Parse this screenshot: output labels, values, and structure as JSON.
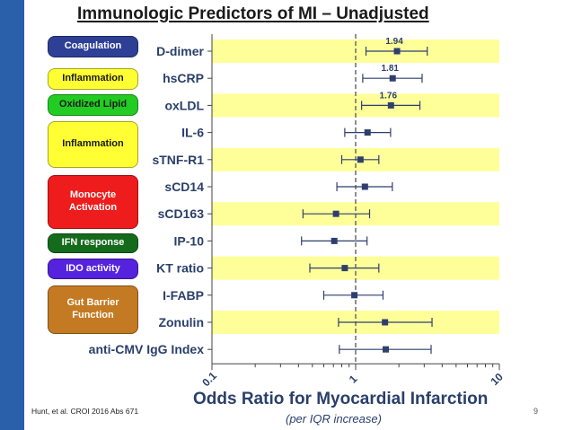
{
  "title": "Immunologic Predictors of MI – Unadjusted",
  "categories_panel": [
    {
      "label": "Coagulation",
      "bg": "#2e3f96",
      "fg": "#ffffff"
    },
    {
      "label": "Inflammation",
      "bg": "#ffff33",
      "fg": "#1a1a1a"
    },
    {
      "label": "Oxidized Lipid",
      "bg": "#22cc22",
      "fg": "#1a1a1a"
    },
    {
      "label": "Inflammation",
      "bg": "#ffff33",
      "fg": "#1a1a1a"
    },
    {
      "label": "Monocyte\nActivation",
      "bg": "#ee1c1c",
      "fg": "#ffffff"
    },
    {
      "label": "IFN response",
      "bg": "#146b1c",
      "fg": "#ffffff"
    },
    {
      "label": "IDO activity",
      "bg": "#5522dd",
      "fg": "#ffffff"
    },
    {
      "label": "Gut Barrier\nFunction",
      "bg": "#c47a22",
      "fg": "#ffffff"
    }
  ],
  "chart_data": {
    "type": "forest",
    "x_scale": "log",
    "xlim": [
      0.1,
      10
    ],
    "x_ticks": [
      "0.1",
      "1",
      "10"
    ],
    "reference_line": 1,
    "xlabel": "Odds Ratio for Myocardial Infarction",
    "xlabel_sub": "(per IQR increase)",
    "band_color": "#ffff99",
    "marker_color": "#2e3f6e",
    "rows": [
      {
        "label": "D-dimer",
        "or": 1.94,
        "lo": 1.18,
        "hi": 3.15,
        "value_label": "1.94"
      },
      {
        "label": "hsCRP",
        "or": 1.81,
        "lo": 1.12,
        "hi": 2.9,
        "value_label": "1.81"
      },
      {
        "label": "oxLDL",
        "or": 1.76,
        "lo": 1.1,
        "hi": 2.8,
        "value_label": "1.76"
      },
      {
        "label": "IL-6",
        "or": 1.21,
        "lo": 0.84,
        "hi": 1.75,
        "value_label": ""
      },
      {
        "label": "sTNF-R1",
        "or": 1.08,
        "lo": 0.8,
        "hi": 1.45,
        "value_label": ""
      },
      {
        "label": "sCD14",
        "or": 1.16,
        "lo": 0.74,
        "hi": 1.8,
        "value_label": ""
      },
      {
        "label": "sCD163",
        "or": 0.73,
        "lo": 0.43,
        "hi": 1.25,
        "value_label": ""
      },
      {
        "label": "IP-10",
        "or": 0.71,
        "lo": 0.42,
        "hi": 1.2,
        "value_label": ""
      },
      {
        "label": "KT ratio",
        "or": 0.84,
        "lo": 0.48,
        "hi": 1.45,
        "value_label": ""
      },
      {
        "label": "I-FABP",
        "or": 0.98,
        "lo": 0.6,
        "hi": 1.55,
        "value_label": ""
      },
      {
        "label": "Zonulin",
        "or": 1.6,
        "lo": 0.76,
        "hi": 3.4,
        "value_label": ""
      },
      {
        "label": "anti-CMV IgG Index",
        "or": 1.62,
        "lo": 0.77,
        "hi": 3.35,
        "value_label": ""
      }
    ]
  },
  "footer": {
    "citation": "Hunt, et al. CROI 2016 Abs 671",
    "page_number": "9"
  }
}
